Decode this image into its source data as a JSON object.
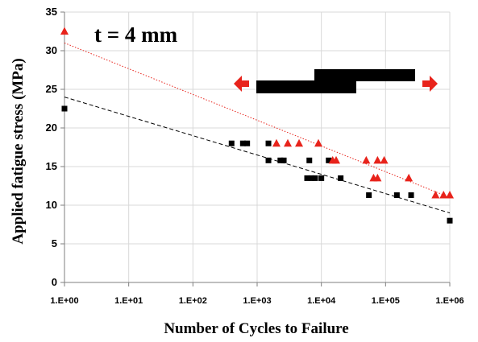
{
  "chart_data": {
    "type": "scatter",
    "title": "",
    "xlabel": "Number of Cycles to Failure",
    "ylabel": "Applied fatigue stress (MPa)",
    "xscale": "log",
    "xlim": [
      1,
      1000000
    ],
    "ylim": [
      0,
      35
    ],
    "grid": true,
    "x_tick_labels": [
      "1.E+00",
      "1.E+01",
      "1.E+02",
      "1.E+03",
      "1.E+04",
      "1.E+05",
      "1.E+06"
    ],
    "y_tick_labels": [
      "0",
      "5",
      "10",
      "15",
      "20",
      "25",
      "30",
      "35"
    ],
    "annotation": "t = 4 mm",
    "series": [
      {
        "marker": "square",
        "color": "#000000",
        "points": [
          [
            1,
            22.5
          ],
          [
            400,
            18
          ],
          [
            600,
            18
          ],
          [
            700,
            18
          ],
          [
            1500,
            18
          ],
          [
            1500,
            15.8
          ],
          [
            2300,
            15.8
          ],
          [
            2600,
            15.8
          ],
          [
            6000,
            13.5
          ],
          [
            6500,
            15.8
          ],
          [
            7000,
            13.5
          ],
          [
            8000,
            13.5
          ],
          [
            10000,
            13.5
          ],
          [
            13000,
            15.8
          ],
          [
            20000,
            13.5
          ],
          [
            55000,
            11.3
          ],
          [
            150000,
            11.3
          ],
          [
            250000,
            11.3
          ],
          [
            1000000,
            8
          ]
        ],
        "trendline": {
          "style": "dashed",
          "color": "#000000",
          "from": [
            1,
            24
          ],
          "to": [
            1000000,
            9
          ]
        }
      },
      {
        "marker": "triangle",
        "color": "#e8231b",
        "points": [
          [
            1,
            32.5
          ],
          [
            2000,
            18
          ],
          [
            3000,
            18
          ],
          [
            4500,
            18
          ],
          [
            9000,
            18
          ],
          [
            15000,
            15.8
          ],
          [
            17000,
            15.8
          ],
          [
            50000,
            15.8
          ],
          [
            65000,
            13.5
          ],
          [
            75000,
            13.5
          ],
          [
            75000,
            15.8
          ],
          [
            95000,
            15.8
          ],
          [
            230000,
            13.5
          ],
          [
            600000,
            11.3
          ],
          [
            800000,
            11.3
          ],
          [
            1000000,
            11.3
          ]
        ],
        "trendline": {
          "style": "dotted",
          "color": "#e8231b",
          "from": [
            1,
            31
          ],
          "to": [
            1000000,
            11
          ]
        }
      }
    ]
  }
}
